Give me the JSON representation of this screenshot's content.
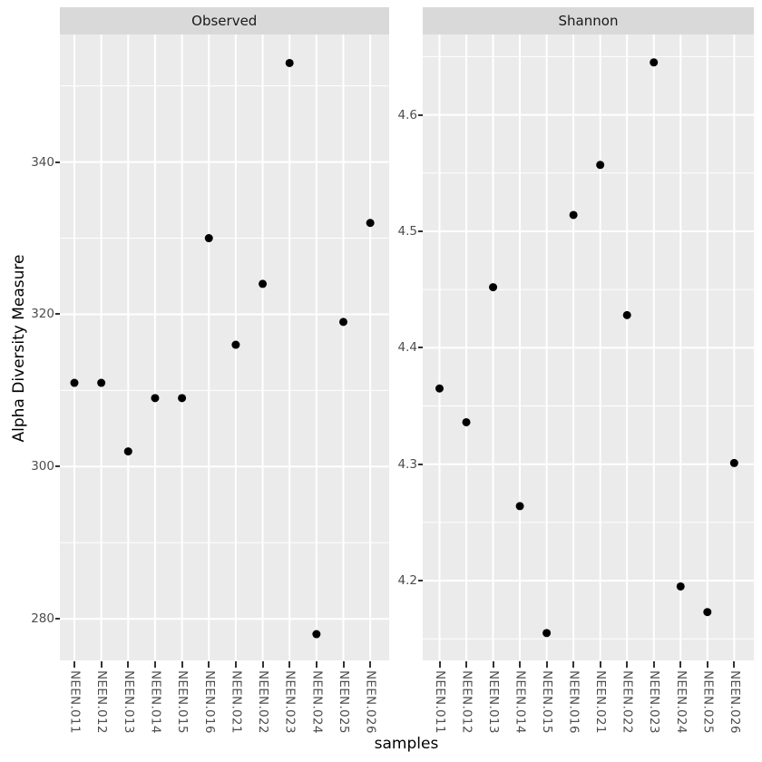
{
  "chart_data": {
    "type": "scatter",
    "title": "",
    "xlabel": "samples",
    "ylabel": "Alpha Diversity Measure",
    "grid": true,
    "legend": "none",
    "categories": [
      "NEEN.011",
      "NEEN.012",
      "NEEN.013",
      "NEEN.014",
      "NEEN.015",
      "NEEN.016",
      "NEEN.021",
      "NEEN.022",
      "NEEN.023",
      "NEEN.024",
      "NEEN.025",
      "NEEN.026"
    ],
    "facets": [
      {
        "label": "Observed",
        "values": [
          311,
          311,
          302,
          309,
          309,
          330,
          316,
          324,
          353,
          278,
          319,
          332
        ],
        "y_axis": {
          "tick_labels": [
            "280",
            "300",
            "320",
            "340"
          ],
          "tick_values": [
            280,
            300,
            320,
            340
          ],
          "minor_values": [
            290,
            310,
            330,
            350
          ],
          "range": [
            274.55,
            356.75
          ]
        }
      },
      {
        "label": "Shannon",
        "values": [
          4.365,
          4.336,
          4.452,
          4.264,
          4.155,
          4.514,
          4.557,
          4.428,
          4.645,
          4.195,
          4.173,
          4.301
        ],
        "y_axis": {
          "tick_labels": [
            "4.2",
            "4.3",
            "4.4",
            "4.5",
            "4.6"
          ],
          "tick_values": [
            4.2,
            4.3,
            4.4,
            4.5,
            4.6
          ],
          "minor_values": [
            4.15,
            4.25,
            4.35,
            4.45,
            4.55,
            4.65
          ],
          "range": [
            4.1315,
            4.669
          ]
        }
      }
    ]
  },
  "style": {
    "background": "#ffffff",
    "panel_background": "#ebebeb",
    "strip_background": "#d9d9d9",
    "strip_text_color": "#1a1a1a",
    "grid_color": "#ffffff",
    "point_color": "#000000",
    "tick_label_color": "#4d4d4d",
    "tick_mark_color": "#333333",
    "axis_title_color": "#000000"
  }
}
